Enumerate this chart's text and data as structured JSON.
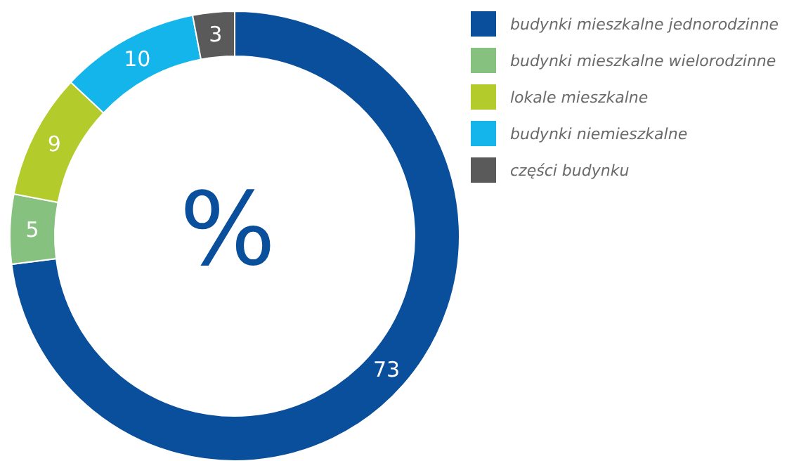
{
  "chart_data": {
    "type": "donut",
    "categories": [
      "budynki mieszkalne jednorodzinne",
      "budynki mieszkalne wielorodzinne",
      "lokale mieszkalne",
      "budynki niemieszkalne",
      "części budynku"
    ],
    "values": [
      73,
      5,
      9,
      10,
      3
    ],
    "colors": [
      "#0a4f9c",
      "#86c17f",
      "#b3cb2b",
      "#13b5ea",
      "#5a5a5a"
    ],
    "data_labels": true,
    "legend": "top right",
    "annotations": [
      "%"
    ]
  }
}
